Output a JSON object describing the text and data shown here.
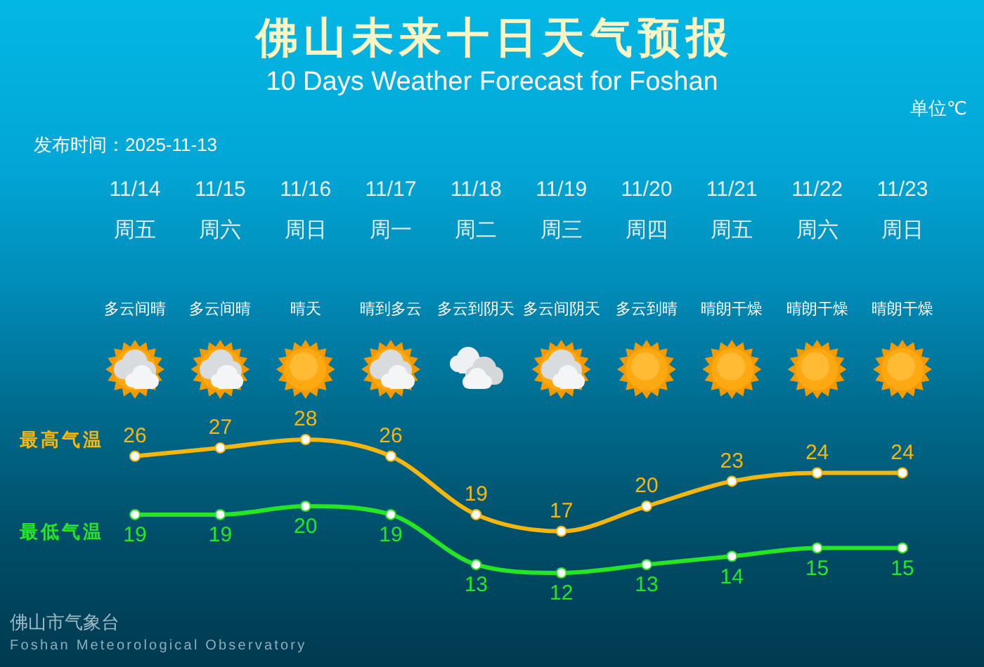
{
  "chart_data": {
    "type": "line",
    "title": "佛山未来十日天气预报",
    "subtitle": "10 Days Weather Forecast for Foshan",
    "categories": [
      "11/14",
      "11/15",
      "11/16",
      "11/17",
      "11/18",
      "11/19",
      "11/20",
      "11/21",
      "11/22",
      "11/23"
    ],
    "series": [
      {
        "name": "最高气温",
        "color": "#f5b70f",
        "values": [
          26,
          27,
          28,
          26,
          19,
          17,
          20,
          23,
          24,
          24
        ]
      },
      {
        "name": "最低气温",
        "color": "#25e625",
        "values": [
          19,
          19,
          20,
          19,
          13,
          12,
          13,
          14,
          15,
          15
        ]
      }
    ],
    "data_labels": true,
    "marker": "circle",
    "line_style": "solid",
    "grid": false,
    "legend": false,
    "tick_labels": "x",
    "annotations": [
      "单位℃",
      "发布时间：2025-11-13",
      "周五",
      "周六",
      "周日",
      "周一",
      "周二",
      "周三",
      "周四",
      "周五",
      "周六",
      "周日",
      "多云间晴",
      "多云间晴",
      "晴天",
      "晴到多云",
      "多云到阴天",
      "多云间阴天",
      "多云到晴",
      "晴朗干燥",
      "晴朗干燥",
      "晴朗干燥",
      "佛山市气象台",
      "Foshan Meteorological Observatory"
    ]
  }
}
